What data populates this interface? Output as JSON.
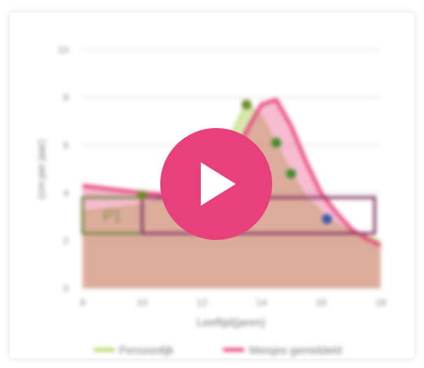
{
  "chart_data": {
    "type": "area",
    "xlabel": "Leeftijd(jaren)",
    "ylabel": "(cm per jaar)",
    "xlim": [
      8,
      18
    ],
    "ylim": [
      0,
      10
    ],
    "x_ticks": [
      "8",
      "10",
      "12",
      "14",
      "16",
      "18"
    ],
    "y_ticks": [
      "0",
      "2",
      "4",
      "6",
      "8",
      "10"
    ],
    "grid": true,
    "legend_position": "bottom",
    "series": [
      {
        "name": "Persoonlijk",
        "color": "#b5d66a",
        "x": [
          8,
          10,
          11,
          12,
          12.8,
          13.5,
          14,
          14.5,
          15,
          15.5,
          16,
          16.5,
          17,
          18
        ],
        "y": [
          3.2,
          3.5,
          3.9,
          4.4,
          6.0,
          7.8,
          7.2,
          6.0,
          4.8,
          3.8,
          3.2,
          2.7,
          2.4,
          2.0
        ]
      },
      {
        "name": "Meisjes gemiddeld",
        "color": "#e8407a",
        "x": [
          8,
          9,
          10,
          11,
          12,
          12.5,
          13,
          13.5,
          14,
          14.5,
          15,
          15.5,
          16,
          16.5,
          17,
          17.5,
          18
        ],
        "y": [
          4.3,
          4.15,
          4.0,
          3.9,
          3.95,
          4.3,
          5.2,
          6.6,
          7.7,
          7.9,
          6.8,
          5.3,
          4.0,
          3.2,
          2.5,
          2.1,
          1.8
        ]
      }
    ],
    "points": [
      {
        "x": 10,
        "y": 3.9,
        "color": "#6b8a2a"
      },
      {
        "x": 13.5,
        "y": 7.7,
        "color": "#6b8a2a"
      },
      {
        "x": 14.5,
        "y": 6.1,
        "color": "#3f8a2a"
      },
      {
        "x": 15,
        "y": 4.8,
        "color": "#3f8a2a"
      },
      {
        "x": 16.2,
        "y": 2.9,
        "color": "#3355aa"
      }
    ],
    "annotations": [
      {
        "text": "P1",
        "x_range": [
          8,
          10
        ],
        "y_range": [
          2.3,
          3.8
        ],
        "color": "#7a8a4a"
      },
      {
        "text": "",
        "x_range": [
          10,
          17.8
        ],
        "y_range": [
          2.3,
          3.8
        ],
        "color": "#8a3a6a"
      }
    ]
  },
  "ui": {
    "play_button_color": "#e8407a",
    "play_icon": "play-icon"
  }
}
